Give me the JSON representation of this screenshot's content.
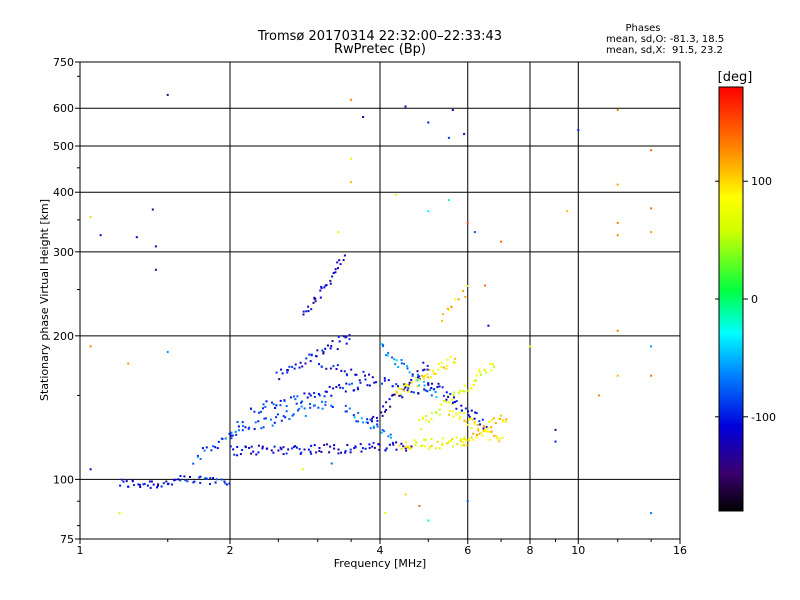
{
  "chart_data": {
    "type": "scatter",
    "title": "Tromsø 20170314 22:32:00–22:33:43",
    "subtitle": "RwPretec (Bp)",
    "xlabel": "Frequency [MHz]",
    "ylabel": "Stationary phase Virtual Height [km]",
    "x_scale": "log",
    "y_scale": "log",
    "xlim": [
      1,
      16
    ],
    "ylim": [
      75,
      750
    ],
    "x_ticks": [
      1,
      2,
      4,
      6,
      8,
      10,
      16
    ],
    "y_ticks": [
      75,
      100,
      200,
      300,
      400,
      500,
      600,
      750
    ],
    "grid": true,
    "stats": {
      "heading": "Phases",
      "line_o": "mean, sd,O: -81.3, 18.5",
      "line_x": "mean, sd,X:  91.5, 23.2"
    },
    "colorbar": {
      "label": "[deg]",
      "range": [
        -180,
        180
      ],
      "ticks": [
        100,
        0,
        -100
      ],
      "tick_labels": [
        "100",
        "0",
        "-100"
      ]
    },
    "series": [
      {
        "traces": [
          {
            "x0": 1.2,
            "x1": 1.5,
            "h0": 98,
            "h1": 98,
            "phase": -110,
            "n": 26
          },
          {
            "x0": 1.5,
            "x1": 2.0,
            "h0": 99,
            "h1": 100,
            "phase": -100,
            "n": 28
          },
          {
            "x0": 1.7,
            "x1": 2.1,
            "h0": 110,
            "h1": 130,
            "phase": -90,
            "n": 22
          },
          {
            "x0": 2.0,
            "x1": 4.6,
            "h0": 115,
            "h1": 117,
            "phase": -115,
            "n": 90
          },
          {
            "x0": 2.0,
            "x1": 3.2,
            "h0": 125,
            "h1": 145,
            "phase": -85,
            "n": 45
          },
          {
            "x0": 2.2,
            "x1": 3.8,
            "h0": 140,
            "h1": 160,
            "phase": -95,
            "n": 55
          },
          {
            "x0": 2.5,
            "x1": 3.5,
            "h0": 165,
            "h1": 200,
            "phase": -110,
            "n": 40
          },
          {
            "x0": 2.8,
            "x1": 3.4,
            "h0": 220,
            "h1": 290,
            "phase": -120,
            "n": 30
          },
          {
            "x0": 3.0,
            "x1": 5.0,
            "h0": 175,
            "h1": 150,
            "phase": -105,
            "n": 40
          },
          {
            "x0": 3.4,
            "x1": 4.2,
            "h0": 140,
            "h1": 125,
            "phase": -70,
            "n": 25
          },
          {
            "x0": 3.8,
            "x1": 5.0,
            "h0": 130,
            "h1": 175,
            "phase": -120,
            "n": 35
          },
          {
            "x0": 4.0,
            "x1": 5.2,
            "h0": 190,
            "h1": 150,
            "phase": -60,
            "n": 30
          },
          {
            "x0": 4.3,
            "x1": 5.7,
            "h0": 150,
            "h1": 180,
            "phase": 90,
            "n": 40
          },
          {
            "x0": 4.4,
            "x1": 6.0,
            "h0": 118,
            "h1": 120,
            "phase": 80,
            "n": 40
          },
          {
            "x0": 4.8,
            "x1": 6.8,
            "h0": 130,
            "h1": 175,
            "phase": 70,
            "n": 45
          },
          {
            "x0": 5.0,
            "x1": 6.5,
            "h0": 160,
            "h1": 130,
            "phase": -110,
            "n": 35
          },
          {
            "x0": 5.5,
            "x1": 7.0,
            "h0": 140,
            "h1": 120,
            "phase": 95,
            "n": 35
          },
          {
            "x0": 5.8,
            "x1": 7.2,
            "h0": 120,
            "h1": 135,
            "phase": 100,
            "n": 30
          },
          {
            "x0": 5.3,
            "x1": 6.0,
            "h0": 220,
            "h1": 250,
            "phase": 110,
            "n": 10
          }
        ],
        "scatter_points": [
          [
            1.05,
            355,
            100
          ],
          [
            1.1,
            325,
            -120
          ],
          [
            1.3,
            322,
            -110
          ],
          [
            1.42,
            308,
            -120
          ],
          [
            1.42,
            275,
            -130
          ],
          [
            1.4,
            368,
            -140
          ],
          [
            1.5,
            640,
            -150
          ],
          [
            1.05,
            190,
            130
          ],
          [
            1.25,
            175,
            120
          ],
          [
            1.5,
            185,
            -60
          ],
          [
            1.05,
            105,
            -120
          ],
          [
            1.2,
            85,
            60
          ],
          [
            3.5,
            470,
            90
          ],
          [
            3.5,
            420,
            110
          ],
          [
            3.5,
            625,
            130
          ],
          [
            3.7,
            575,
            -130
          ],
          [
            4.5,
            605,
            -120
          ],
          [
            5.0,
            560,
            -100
          ],
          [
            5.5,
            520,
            -90
          ],
          [
            5.6,
            595,
            -120
          ],
          [
            5.9,
            530,
            -110
          ],
          [
            4.3,
            395,
            60
          ],
          [
            5.0,
            365,
            -30
          ],
          [
            5.5,
            385,
            -20
          ],
          [
            6.0,
            345,
            150
          ],
          [
            6.2,
            330,
            -80
          ],
          [
            7.0,
            315,
            140
          ],
          [
            9.5,
            365,
            110
          ],
          [
            12.0,
            595,
            130
          ],
          [
            12.0,
            415,
            120
          ],
          [
            12.0,
            345,
            130
          ],
          [
            12.0,
            325,
            130
          ],
          [
            14.0,
            490,
            140
          ],
          [
            14.0,
            370,
            140
          ],
          [
            14.0,
            330,
            120
          ],
          [
            14.0,
            190,
            -60
          ],
          [
            14.0,
            165,
            140
          ],
          [
            14.0,
            85,
            -70
          ],
          [
            12.0,
            205,
            130
          ],
          [
            12.0,
            165,
            110
          ],
          [
            11.0,
            150,
            130
          ],
          [
            9.0,
            127,
            -140
          ],
          [
            9.0,
            120,
            -100
          ],
          [
            8.0,
            190,
            70
          ],
          [
            10.0,
            540,
            -100
          ],
          [
            3.3,
            330,
            60
          ],
          [
            4.1,
            85,
            70
          ],
          [
            5.0,
            82,
            -10
          ],
          [
            4.5,
            93,
            100
          ],
          [
            6.0,
            90,
            -80
          ],
          [
            4.8,
            88,
            140
          ],
          [
            2.8,
            105,
            70
          ],
          [
            3.2,
            108,
            -70
          ],
          [
            6.5,
            255,
            140
          ],
          [
            6.6,
            210,
            -110
          ]
        ]
      }
    ]
  }
}
